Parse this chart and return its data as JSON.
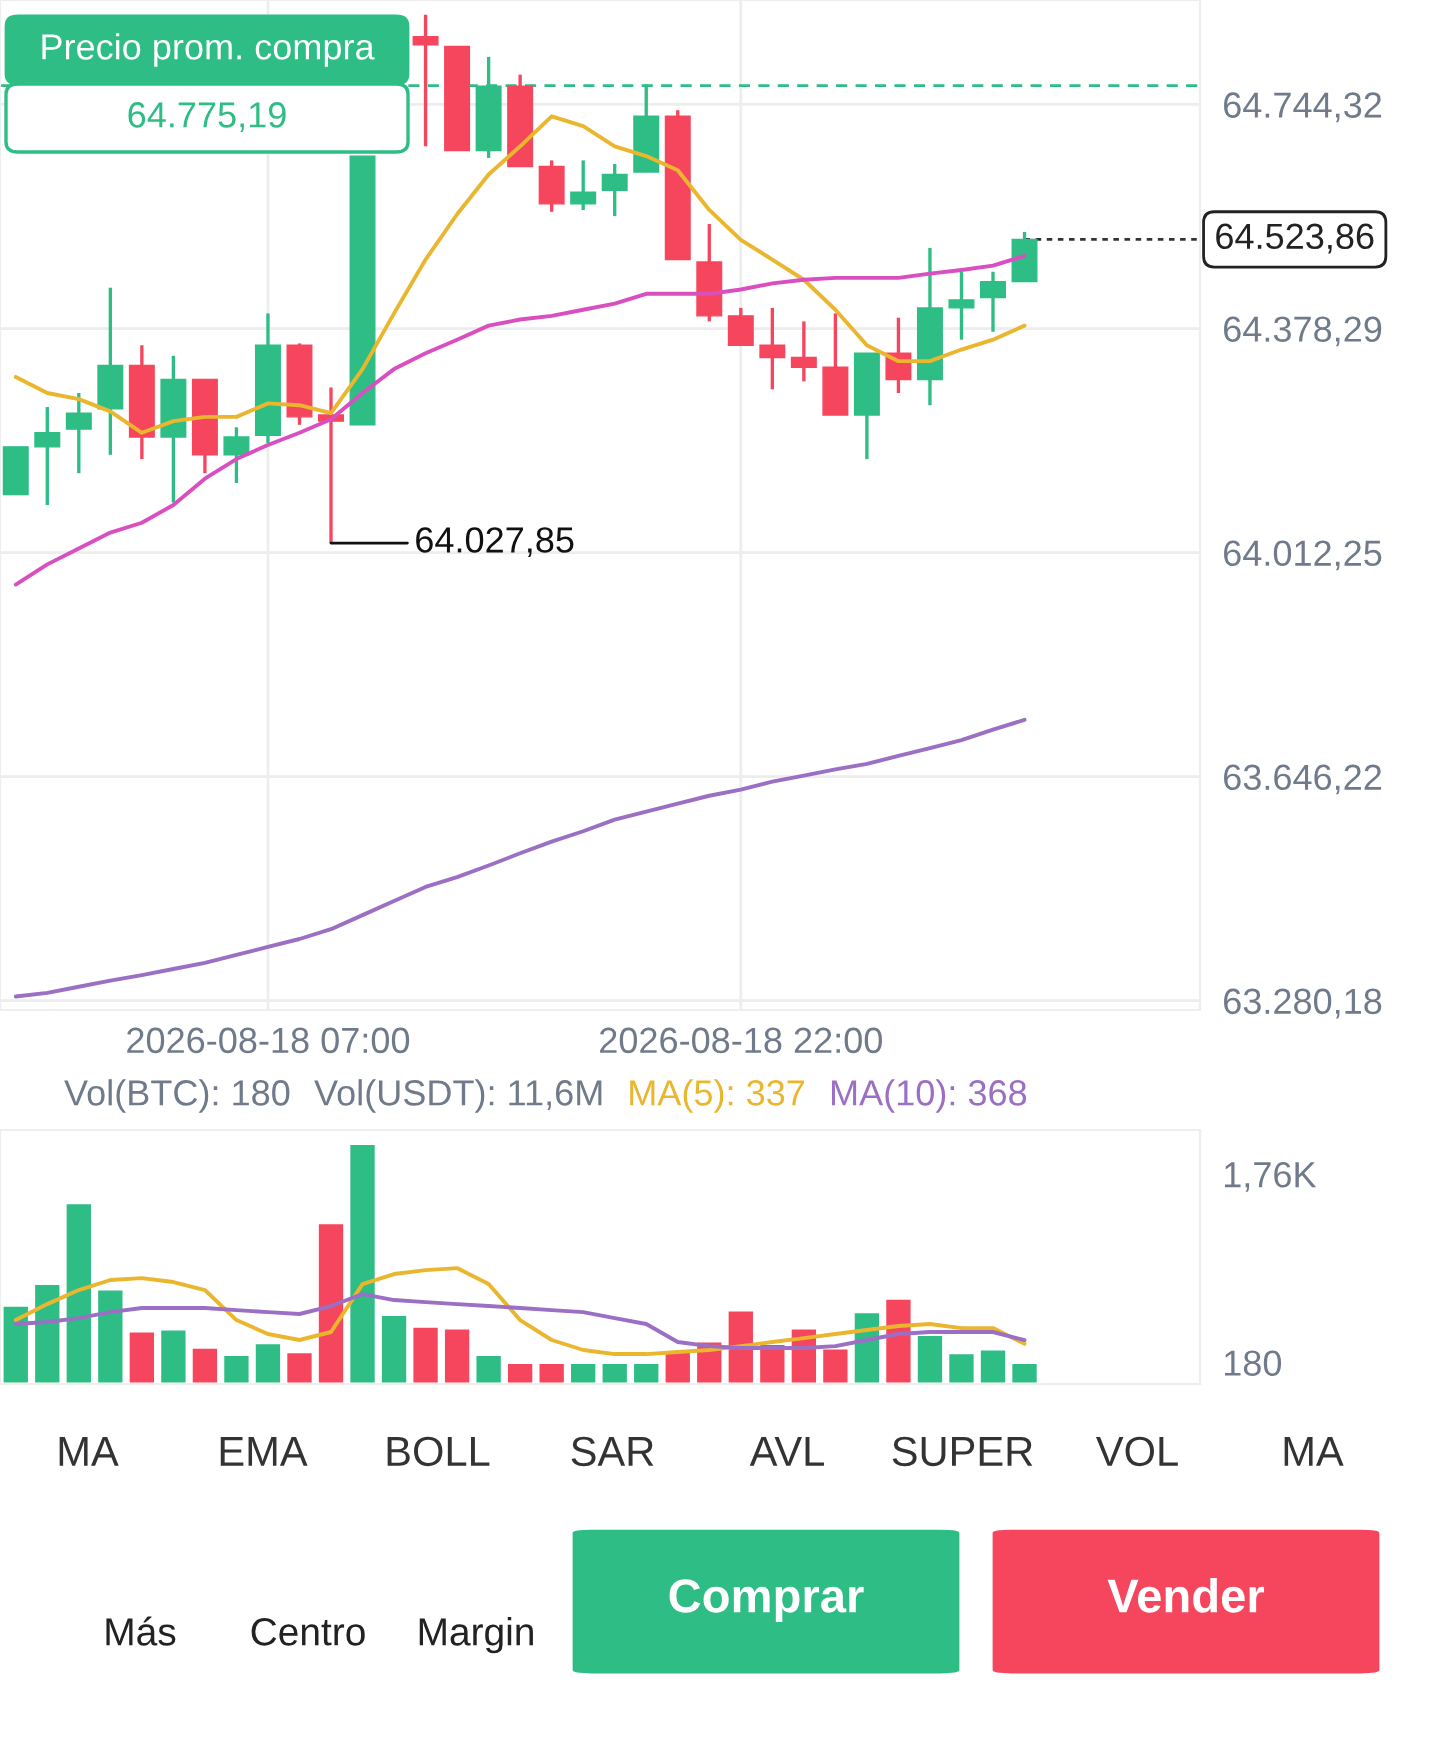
{
  "chart_data": [
    {
      "type": "candlestick",
      "x": [
        "2026-08-17T23:00",
        "2026-08-18T00:00",
        "2026-08-18T01:00",
        "2026-08-18T02:00",
        "2026-08-18T03:00",
        "2026-08-18T04:00",
        "2026-08-18T05:00",
        "2026-08-18T06:00",
        "2026-08-18T07:00",
        "2026-08-18T08:00",
        "2026-08-18T09:00",
        "2026-08-18T10:00",
        "2026-08-18T11:00",
        "2026-08-18T12:00",
        "2026-08-18T13:00",
        "2026-08-18T14:00",
        "2026-08-18T15:00",
        "2026-08-18T16:00",
        "2026-08-18T17:00",
        "2026-08-18T18:00",
        "2026-08-18T19:00",
        "2026-08-18T20:00",
        "2026-08-18T21:00",
        "2026-08-18T22:00",
        "2026-08-18T23:00",
        "2026-08-19T00:00",
        "2026-08-19T01:00",
        "2026-08-19T02:00",
        "2026-08-19T03:00",
        "2026-08-19T04:00",
        "2026-08-19T05:00",
        "2026-08-19T06:00",
        "2026-08-19T07:00"
      ],
      "ohlc": [
        [
          64107,
          64185,
          64107,
          64185
        ],
        [
          64185,
          64250,
          64090,
          64208
        ],
        [
          64214,
          64273,
          64142,
          64240
        ],
        [
          64247,
          64445,
          64172,
          64318
        ],
        [
          64318,
          64351,
          64165,
          64201
        ],
        [
          64201,
          64334,
          64094,
          64295
        ],
        [
          64295,
          64295,
          64142,
          64172
        ],
        [
          64172,
          64217,
          64126,
          64201
        ],
        [
          64204,
          64403,
          64191,
          64351
        ],
        [
          64351,
          64354,
          64221,
          64234
        ],
        [
          64237,
          64282,
          64027.85,
          64227
        ],
        [
          64221,
          64660,
          64221,
          64660
        ],
        null,
        [
          64855,
          64891,
          64676,
          64842
        ],
        [
          64839,
          64839,
          64669,
          64669
        ],
        [
          64669,
          64822,
          64657,
          64774
        ],
        [
          64774,
          64793,
          64643,
          64643
        ],
        [
          64643,
          64653,
          64569,
          64582
        ],
        [
          64582,
          64653,
          64572,
          64601
        ],
        [
          64604,
          64647,
          64562,
          64630
        ],
        [
          64634,
          64777,
          64634,
          64725
        ],
        [
          64725,
          64735,
          64491,
          64491
        ],
        [
          64487,
          64549,
          64390,
          64399
        ],
        [
          64399,
          64412,
          64351,
          64351
        ],
        [
          64351,
          64412,
          64279,
          64331
        ],
        [
          64331,
          64390,
          64292,
          64315
        ],
        [
          64315,
          64403,
          64237,
          64237
        ],
        [
          64237,
          64338,
          64165,
          64338
        ],
        [
          64338,
          64396,
          64273,
          64295
        ],
        [
          64295,
          64510,
          64253,
          64412
        ],
        [
          64412,
          64471,
          64360,
          64425
        ],
        [
          64429,
          64471,
          64373,
          64455
        ],
        [
          64455,
          64536,
          64455,
          64523.86
        ]
      ],
      "colors": [
        "#2ebd85",
        "#2ebd85",
        "#2ebd85",
        "#2ebd85",
        "#f6465d",
        "#2ebd85",
        "#f6465d",
        "#2ebd85",
        "#2ebd85",
        "#f6465d",
        "#f6465d",
        "#2ebd85",
        null,
        "#f6465d",
        "#f6465d",
        "#2ebd85",
        "#f6465d",
        "#f6465d",
        "#2ebd85",
        "#2ebd85",
        "#2ebd85",
        "#f6465d",
        "#f6465d",
        "#f6465d",
        "#f6465d",
        "#f6465d",
        "#f6465d",
        "#2ebd85",
        "#f6465d",
        "#2ebd85",
        "#2ebd85",
        "#2ebd85",
        "#2ebd85"
      ],
      "series": [
        {
          "type": "line",
          "color": "#e9b62d",
          "values": [
            64299,
            64273,
            64263,
            64243,
            64208,
            64227,
            64234,
            64234,
            64256,
            64253,
            64240,
            64312,
            64403,
            64491,
            64565,
            64630,
            64676,
            64725,
            64709,
            64676,
            64660,
            64637,
            64572,
            64523,
            64491,
            64458,
            64409,
            64351,
            64325,
            64325,
            64344,
            64360,
            64383
          ]
        },
        {
          "type": "line",
          "color": "#d94fc0",
          "values": [
            63960,
            63993,
            64019,
            64045,
            64061,
            64090,
            64133,
            64165,
            64188,
            64208,
            64230,
            64273,
            64312,
            64338,
            64360,
            64383,
            64393,
            64399,
            64409,
            64419,
            64435,
            64435,
            64435,
            64442,
            64452,
            64458,
            64461,
            64461,
            64461,
            64468,
            64474,
            64481,
            64497
          ]
        },
        {
          "type": "line",
          "color": "#9a6fc4",
          "values": [
            63287,
            63293,
            63303,
            63313,
            63322,
            63332,
            63342,
            63355,
            63368,
            63381,
            63397,
            63420,
            63443,
            63466,
            63482,
            63501,
            63521,
            63540,
            63557,
            63576,
            63589,
            63602,
            63615,
            63625,
            63638,
            63648,
            63658,
            63667,
            63680,
            63693,
            63706,
            63723,
            63739
          ]
        }
      ],
      "xlim": [
        "2026-08-17T22:30",
        "2026-08-19T12:34"
      ],
      "xticks": [
        {
          "value": "2026-08-18T07:00",
          "label": "2026-08-18 07:00"
        },
        {
          "value": "2026-08-18T22:00",
          "label": "2026-08-18 22:00"
        }
      ],
      "ylim": [
        63265,
        64915
      ],
      "yticks": [
        {
          "value": 64744.32,
          "label": "64.744,32"
        },
        {
          "value": 64378.29,
          "label": "64.378,29"
        },
        {
          "value": 64012.25,
          "label": "64.012,25"
        },
        {
          "value": 63646.22,
          "label": "63.646,22"
        },
        {
          "value": 63280.18,
          "label": "63.280,18"
        }
      ],
      "grid": true,
      "ref_lines": [
        {
          "axis": "y",
          "value": 64775.19,
          "label": "Precio prom. compra",
          "color": "#2ebd85",
          "line_style": "dashed"
        },
        {
          "axis": "y",
          "value": 64523.86,
          "label": "64.523,86",
          "color": "#333333",
          "line_style": "dotted"
        }
      ],
      "annotations": [
        "64.775,19",
        {
          "text": "64.027,85",
          "x": "2026-08-18T09:00",
          "y": 64027.85
        }
      ]
    },
    {
      "type": "bar",
      "x": [
        "2026-08-17T23:00",
        "2026-08-18T00:00",
        "2026-08-18T01:00",
        "2026-08-18T02:00",
        "2026-08-18T03:00",
        "2026-08-18T04:00",
        "2026-08-18T05:00",
        "2026-08-18T06:00",
        "2026-08-18T07:00",
        "2026-08-18T08:00",
        "2026-08-18T09:00",
        "2026-08-18T10:00",
        "2026-08-18T11:00",
        "2026-08-18T12:00",
        "2026-08-18T13:00",
        "2026-08-18T14:00",
        "2026-08-18T15:00",
        "2026-08-18T16:00",
        "2026-08-18T17:00",
        "2026-08-18T18:00",
        "2026-08-18T19:00",
        "2026-08-18T20:00",
        "2026-08-18T21:00",
        "2026-08-18T22:00",
        "2026-08-18T23:00",
        "2026-08-19T00:00",
        "2026-08-19T01:00",
        "2026-08-19T02:00",
        "2026-08-19T03:00",
        "2026-08-19T04:00",
        "2026-08-19T05:00",
        "2026-08-19T06:00",
        "2026-08-19T07:00"
      ],
      "series": [
        {
          "name": "Vol(BTC): 180",
          "type": "bar",
          "colors": [
            "#2ebd85",
            "#2ebd85",
            "#2ebd85",
            "#2ebd85",
            "#f6465d",
            "#2ebd85",
            "#f6465d",
            "#2ebd85",
            "#2ebd85",
            "#f6465d",
            "#f6465d",
            "#2ebd85",
            "#2ebd85",
            "#f6465d",
            "#f6465d",
            "#2ebd85",
            "#f6465d",
            "#f6465d",
            "#2ebd85",
            "#2ebd85",
            "#2ebd85",
            "#f6465d",
            "#f6465d",
            "#f6465d",
            "#f6465d",
            "#f6465d",
            "#f6465d",
            "#2ebd85",
            "#f6465d",
            "#2ebd85",
            "#2ebd85",
            "#2ebd85",
            "#2ebd85"
          ],
          "values": [
            659,
            841,
            1518,
            796,
            444,
            461,
            308,
            246,
            345,
            270,
            1351,
            2015,
            582,
            483,
            468,
            246,
            180,
            180,
            180,
            180,
            180,
            277,
            360,
            620,
            339,
            468,
            300,
            605,
            719,
            414,
            261,
            293,
            180
          ]
        },
        {
          "name": "MA(5): 337",
          "type": "line",
          "color": "#e9b62d",
          "values": [
            536,
            670,
            788,
            872,
            888,
            855,
            788,
            536,
            419,
            369,
            436,
            838,
            922,
            955,
            972,
            838,
            536,
            369,
            285,
            251,
            251,
            268,
            285,
            318,
            352,
            385,
            419,
            453,
            486,
            503,
            469,
            469,
            337
          ]
        },
        {
          "name": "MA(10): 368",
          "type": "line",
          "color": "#9a6fc4",
          "values": [
            503,
            520,
            553,
            603,
            637,
            637,
            637,
            620,
            603,
            587,
            654,
            754,
            704,
            687,
            670,
            654,
            637,
            620,
            603,
            553,
            503,
            352,
            318,
            302,
            302,
            302,
            318,
            369,
            419,
            436,
            436,
            436,
            368
          ]
        }
      ],
      "xlim": [
        "2026-08-17T22:30",
        "2026-08-19T12:34"
      ],
      "ylim": [
        0,
        2130
      ],
      "yticks": [
        180,
        {
          "value": 1760,
          "label": "1,76K"
        }
      ],
      "tick_labels": "y",
      "legend": "top left",
      "annotations": [
        "Vol(USDT): 11,6M"
      ]
    },
    {
      "type": "other",
      "annotations": [
        "MA",
        "EMA",
        "BOLL",
        "SAR",
        "AVL",
        "SUPER",
        "VOL",
        "MA"
      ]
    },
    {
      "type": "other",
      "annotations": [
        "Más",
        "Centro",
        "Margin",
        "Comprar",
        "Vender"
      ],
      "colors": [
        null,
        null,
        null,
        "#2ebd85",
        "#f6465d"
      ]
    }
  ]
}
